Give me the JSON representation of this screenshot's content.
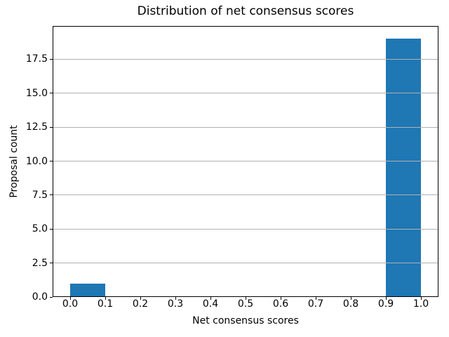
{
  "figure": {
    "background": "#ffffff"
  },
  "chart_data": {
    "type": "bar",
    "subtype": "histogram",
    "title": "Distribution of net consensus scores",
    "xlabel": "Net consensus scores",
    "ylabel": "Proposal count",
    "bin_edges": [
      0.0,
      0.1,
      0.2,
      0.3,
      0.4,
      0.5,
      0.6,
      0.7,
      0.8,
      0.9,
      1.0
    ],
    "values": [
      1,
      0,
      0,
      0,
      0,
      0,
      0,
      0,
      0,
      19
    ],
    "xlim": [
      -0.05,
      1.05
    ],
    "ylim": [
      0,
      19.95
    ],
    "x_ticks": [
      {
        "value": 0.0,
        "label": "0.0"
      },
      {
        "value": 0.1,
        "label": "0.1"
      },
      {
        "value": 0.2,
        "label": "0.2"
      },
      {
        "value": 0.3,
        "label": "0.3"
      },
      {
        "value": 0.4,
        "label": "0.4"
      },
      {
        "value": 0.5,
        "label": "0.5"
      },
      {
        "value": 0.6,
        "label": "0.6"
      },
      {
        "value": 0.7,
        "label": "0.7"
      },
      {
        "value": 0.8,
        "label": "0.8"
      },
      {
        "value": 0.9,
        "label": "0.9"
      },
      {
        "value": 1.0,
        "label": "1.0"
      }
    ],
    "y_ticks": [
      {
        "value": 0.0,
        "label": "0.0"
      },
      {
        "value": 2.5,
        "label": "2.5"
      },
      {
        "value": 5.0,
        "label": "5.0"
      },
      {
        "value": 7.5,
        "label": "7.5"
      },
      {
        "value": 10.0,
        "label": "10.0"
      },
      {
        "value": 12.5,
        "label": "12.5"
      },
      {
        "value": 15.0,
        "label": "15.0"
      },
      {
        "value": 17.5,
        "label": "17.5"
      }
    ],
    "grid": "horizontal",
    "grid_above_bars": true,
    "legend_position": "none",
    "colors": {
      "bar": "#1f77b4",
      "grid": "#b0b0b0",
      "spine": "#000000",
      "tick": "#000000",
      "text": "#000000"
    }
  }
}
